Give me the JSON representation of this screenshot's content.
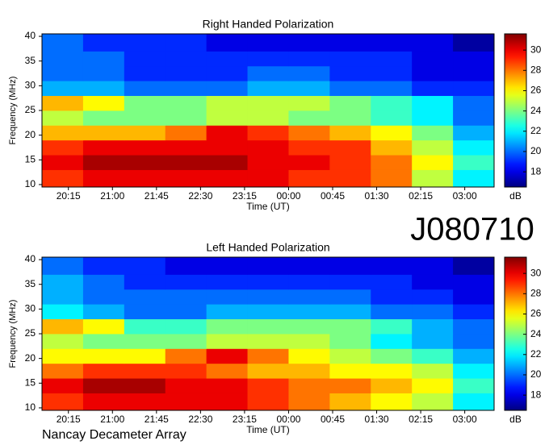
{
  "title": "J080710",
  "footer": "Nancay Decameter Array",
  "chart_data": [
    {
      "type": "heatmap",
      "title": "Right Handed Polarization",
      "xlabel": "Time (UT)",
      "ylabel": "Frequency (MHz)",
      "colorbar_label": "dB",
      "colormap": "jet",
      "xbins": [
        19.8,
        20.5,
        21.2,
        21.9,
        22.6,
        23.3,
        24,
        24.7,
        25.4,
        26.1,
        26.8,
        27.5
      ],
      "ybins": [
        9.5,
        13,
        16,
        19,
        22,
        25,
        28,
        31,
        34,
        37,
        40.5
      ],
      "values": [
        [
          29,
          30,
          30,
          30,
          30,
          30,
          29,
          29,
          28,
          25,
          22
        ],
        [
          30,
          31,
          31,
          31,
          31,
          30,
          30,
          29,
          28,
          26,
          23
        ],
        [
          29,
          30,
          30,
          30,
          30,
          30,
          29,
          29,
          27,
          25,
          22
        ],
        [
          27,
          27,
          27,
          28,
          30,
          29,
          28,
          27,
          26,
          24,
          21
        ],
        [
          25,
          24,
          24,
          24,
          25,
          25,
          24,
          24,
          23,
          22,
          20
        ],
        [
          27,
          26,
          24,
          24,
          25,
          25,
          25,
          24,
          23,
          22,
          20
        ],
        [
          21,
          21,
          20,
          20,
          20,
          21,
          21,
          20,
          20,
          19,
          19
        ],
        [
          20,
          20,
          19,
          19,
          19,
          20,
          20,
          19,
          19,
          18,
          18
        ],
        [
          20,
          20,
          19,
          19,
          19,
          19,
          19,
          19,
          19,
          18,
          18
        ],
        [
          20,
          19,
          19,
          19,
          18,
          18,
          18,
          18,
          18,
          18,
          17
        ]
      ],
      "xlim": [
        19.8,
        27.5
      ],
      "ylim": [
        9.5,
        40.5
      ],
      "xticks": [
        {
          "value": 20.25,
          "label": "20:15"
        },
        {
          "value": 21,
          "label": "21:00"
        },
        {
          "value": 21.75,
          "label": "21:45"
        },
        {
          "value": 22.5,
          "label": "22:30"
        },
        {
          "value": 23.25,
          "label": "23:15"
        },
        {
          "value": 24,
          "label": "00:00"
        },
        {
          "value": 24.75,
          "label": "00:45"
        },
        {
          "value": 25.5,
          "label": "01:30"
        },
        {
          "value": 26.25,
          "label": "02:15"
        },
        {
          "value": 27,
          "label": "03:00"
        }
      ],
      "yticks": [
        10,
        15,
        20,
        25,
        30,
        35,
        40
      ],
      "clim": [
        16.5,
        31.6
      ],
      "cticks": [
        18,
        20,
        22,
        24,
        26,
        28,
        30
      ]
    },
    {
      "type": "heatmap",
      "title": "Left Handed Polarization",
      "xlabel": "Time (UT)",
      "ylabel": "Frequency (MHz)",
      "colorbar_label": "dB",
      "colormap": "jet",
      "xbins": [
        19.8,
        20.5,
        21.2,
        21.9,
        22.6,
        23.3,
        24,
        24.7,
        25.4,
        26.1,
        26.8,
        27.5
      ],
      "ybins": [
        9.5,
        13,
        16,
        19,
        22,
        25,
        28,
        31,
        34,
        37,
        40.5
      ],
      "values": [
        [
          29,
          30,
          30,
          30,
          30,
          29,
          28,
          27,
          26,
          25,
          22
        ],
        [
          30,
          31,
          31,
          30,
          30,
          29,
          28,
          28,
          27,
          26,
          23
        ],
        [
          28,
          29,
          29,
          29,
          28,
          27,
          27,
          26,
          26,
          25,
          22
        ],
        [
          26,
          26,
          26,
          28,
          30,
          28,
          26,
          25,
          24,
          23,
          21
        ],
        [
          25,
          24,
          24,
          24,
          25,
          25,
          25,
          24,
          22,
          21,
          20
        ],
        [
          27,
          26,
          23,
          23,
          24,
          24,
          24,
          24,
          23,
          21,
          20
        ],
        [
          22,
          21,
          20,
          20,
          21,
          21,
          21,
          21,
          20,
          20,
          19
        ],
        [
          21,
          20,
          20,
          20,
          20,
          20,
          20,
          20,
          19,
          19,
          18
        ],
        [
          21,
          20,
          19,
          19,
          19,
          19,
          19,
          19,
          19,
          18,
          18
        ],
        [
          20,
          19,
          19,
          18,
          18,
          18,
          18,
          18,
          18,
          18,
          17
        ]
      ],
      "xlim": [
        19.8,
        27.5
      ],
      "ylim": [
        9.5,
        40.5
      ],
      "xticks": [
        {
          "value": 20.25,
          "label": "20:15"
        },
        {
          "value": 21,
          "label": "21:00"
        },
        {
          "value": 21.75,
          "label": "21:45"
        },
        {
          "value": 22.5,
          "label": "22:30"
        },
        {
          "value": 23.25,
          "label": "23:15"
        },
        {
          "value": 24,
          "label": "00:00"
        },
        {
          "value": 24.75,
          "label": "00:45"
        },
        {
          "value": 25.5,
          "label": "01:30"
        },
        {
          "value": 26.25,
          "label": "02:15"
        },
        {
          "value": 27,
          "label": "03:00"
        }
      ],
      "yticks": [
        10,
        15,
        20,
        25,
        30,
        35,
        40
      ],
      "clim": [
        16.5,
        31.6
      ],
      "cticks": [
        18,
        20,
        22,
        24,
        26,
        28,
        30
      ]
    }
  ]
}
